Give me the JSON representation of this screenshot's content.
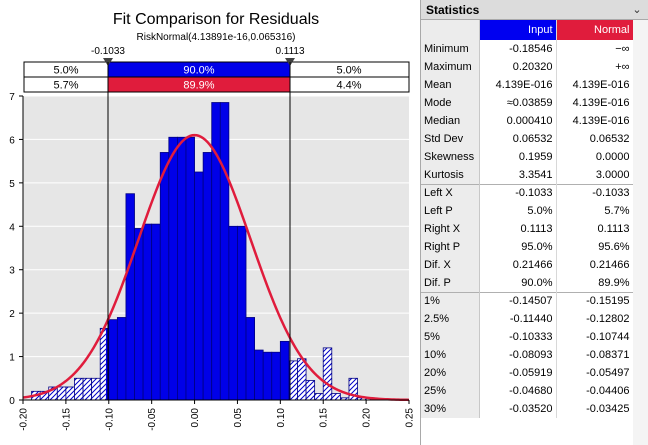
{
  "chart": {
    "title": "Fit Comparison for Residuals",
    "subtitle": "RiskNormal(4.13891e-16,0.065316)",
    "left_marker": "-0.1033",
    "right_marker": "0.1113",
    "band_input": {
      "left": "5.0%",
      "middle": "90.0%",
      "right": "5.0%"
    },
    "band_normal": {
      "left": "5.7%",
      "middle": "89.9%",
      "right": "4.4%"
    },
    "colors": {
      "input": "#0000e8",
      "normal": "#e01c3c",
      "edge": "#000080"
    }
  },
  "chart_data": {
    "type": "bar",
    "title": "Fit Comparison for Residuals",
    "subtitle": "RiskNormal(4.13891e-16,0.065316)",
    "xlim": [
      -0.2,
      0.25
    ],
    "ylim": [
      0,
      7
    ],
    "x_ticks": [
      "-0.20",
      "-0.15",
      "-0.10",
      "-0.05",
      "0.00",
      "0.05",
      "0.10",
      "0.15",
      "0.20",
      "0.25"
    ],
    "y_ticks": [
      "0",
      "1",
      "2",
      "3",
      "4",
      "5",
      "6",
      "7"
    ],
    "bin_width": 0.01,
    "bins": [
      {
        "x": -0.19,
        "h": 0.2
      },
      {
        "x": -0.18,
        "h": 0.2
      },
      {
        "x": -0.17,
        "h": 0.3
      },
      {
        "x": -0.16,
        "h": 0.3
      },
      {
        "x": -0.15,
        "h": 0.3
      },
      {
        "x": -0.14,
        "h": 0.5
      },
      {
        "x": -0.13,
        "h": 0.5
      },
      {
        "x": -0.12,
        "h": 0.5
      },
      {
        "x": -0.11,
        "h": 1.65
      },
      {
        "x": -0.1,
        "h": 1.85
      },
      {
        "x": -0.09,
        "h": 1.9
      },
      {
        "x": -0.08,
        "h": 4.75
      },
      {
        "x": -0.07,
        "h": 3.95
      },
      {
        "x": -0.06,
        "h": 4.05
      },
      {
        "x": -0.05,
        "h": 4.05
      },
      {
        "x": -0.04,
        "h": 5.7
      },
      {
        "x": -0.03,
        "h": 6.05
      },
      {
        "x": -0.02,
        "h": 6.05
      },
      {
        "x": -0.01,
        "h": 6.05
      },
      {
        "x": 0.0,
        "h": 5.25
      },
      {
        "x": 0.01,
        "h": 5.7
      },
      {
        "x": 0.02,
        "h": 6.85
      },
      {
        "x": 0.03,
        "h": 6.85
      },
      {
        "x": 0.04,
        "h": 4.0
      },
      {
        "x": 0.05,
        "h": 4.0
      },
      {
        "x": 0.06,
        "h": 1.9
      },
      {
        "x": 0.07,
        "h": 1.15
      },
      {
        "x": 0.08,
        "h": 1.1
      },
      {
        "x": 0.09,
        "h": 1.1
      },
      {
        "x": 0.1,
        "h": 1.35
      },
      {
        "x": 0.11,
        "h": 0.9
      },
      {
        "x": 0.12,
        "h": 0.95
      },
      {
        "x": 0.13,
        "h": 0.45
      },
      {
        "x": 0.14,
        "h": 0.15
      },
      {
        "x": 0.15,
        "h": 1.2
      },
      {
        "x": 0.16,
        "h": 0.15
      },
      {
        "x": 0.17,
        "h": 0.05
      },
      {
        "x": 0.18,
        "h": 0.5
      },
      {
        "x": 0.19,
        "h": 0.05
      },
      {
        "x": 0.2,
        "h": 0.05
      }
    ],
    "fit_curve": {
      "name": "RiskNormal(4.13891e-16,0.065316)",
      "mean": 0.0,
      "std": 0.065316,
      "peak": 6.1
    },
    "markers": {
      "left": -0.1033,
      "right": 0.1113
    }
  },
  "stats": {
    "header": "Statistics",
    "col_input": "Input",
    "col_normal": "Normal",
    "rows": [
      {
        "label": "Minimum",
        "input": "-0.18546",
        "normal": "−∞"
      },
      {
        "label": "Maximum",
        "input": "0.20320",
        "normal": "+∞"
      },
      {
        "label": "Mean",
        "input": "4.139E-016",
        "normal": "4.139E-016"
      },
      {
        "label": "Mode",
        "input": "≈0.03859",
        "normal": "4.139E-016"
      },
      {
        "label": "Median",
        "input": "0.000410",
        "normal": "4.139E-016"
      },
      {
        "label": "Std Dev",
        "input": "0.06532",
        "normal": "0.06532"
      },
      {
        "label": "Skewness",
        "input": "0.1959",
        "normal": "0.0000"
      },
      {
        "label": "Kurtosis",
        "input": "3.3541",
        "normal": "3.0000"
      },
      {
        "label": "Left X",
        "input": "-0.1033",
        "normal": "-0.1033"
      },
      {
        "label": "Left P",
        "input": "5.0%",
        "normal": "5.7%"
      },
      {
        "label": "Right X",
        "input": "0.1113",
        "normal": "0.1113"
      },
      {
        "label": "Right P",
        "input": "95.0%",
        "normal": "95.6%"
      },
      {
        "label": "Dif. X",
        "input": "0.21466",
        "normal": "0.21466"
      },
      {
        "label": "Dif. P",
        "input": "90.0%",
        "normal": "89.9%"
      },
      {
        "label": "1%",
        "input": "-0.14507",
        "normal": "-0.15195"
      },
      {
        "label": "2.5%",
        "input": "-0.11440",
        "normal": "-0.12802"
      },
      {
        "label": "5%",
        "input": "-0.10333",
        "normal": "-0.10744"
      },
      {
        "label": "10%",
        "input": "-0.08093",
        "normal": "-0.08371"
      },
      {
        "label": "20%",
        "input": "-0.05919",
        "normal": "-0.05497"
      },
      {
        "label": "25%",
        "input": "-0.04680",
        "normal": "-0.04406"
      },
      {
        "label": "30%",
        "input": "-0.03520",
        "normal": "-0.03425"
      }
    ]
  }
}
